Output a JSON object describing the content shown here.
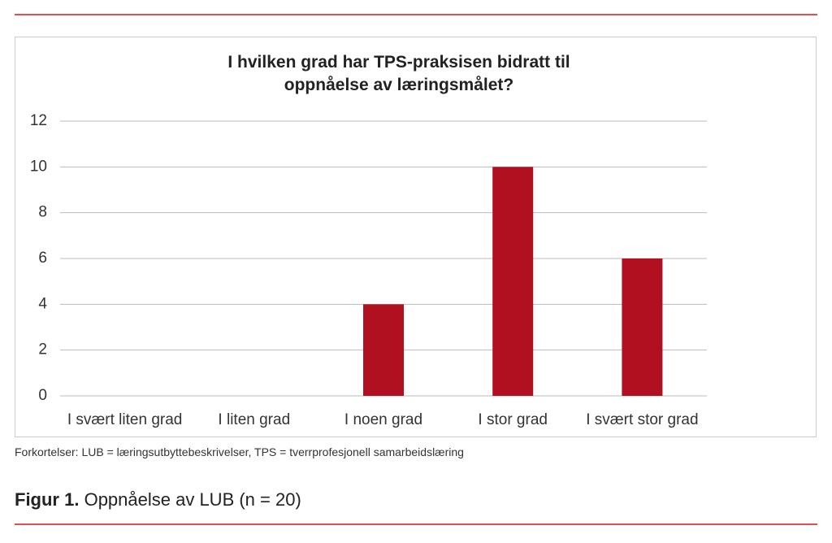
{
  "chart_data": {
    "type": "bar",
    "title": "I hvilken grad har TPS-praksisen bidratt til oppnåelse av læringsmålet?",
    "categories": [
      "I svært liten grad",
      "I liten grad",
      "I noen grad",
      "I stor grad",
      "I svært stor grad"
    ],
    "values": [
      0,
      0,
      4,
      10,
      6
    ],
    "color": "#b01020",
    "ylim": [
      0,
      12
    ],
    "yticks": [
      0,
      2,
      4,
      6,
      8,
      10,
      12
    ],
    "grid": true
  },
  "note": "Forkortelser: LUB = læringsutbyttebeskrivelser, TPS = tverrprofesjonell samarbeidslæring",
  "figure": {
    "label": "Figur 1.",
    "caption": "Oppnåelse av LUB (n = 20)"
  }
}
